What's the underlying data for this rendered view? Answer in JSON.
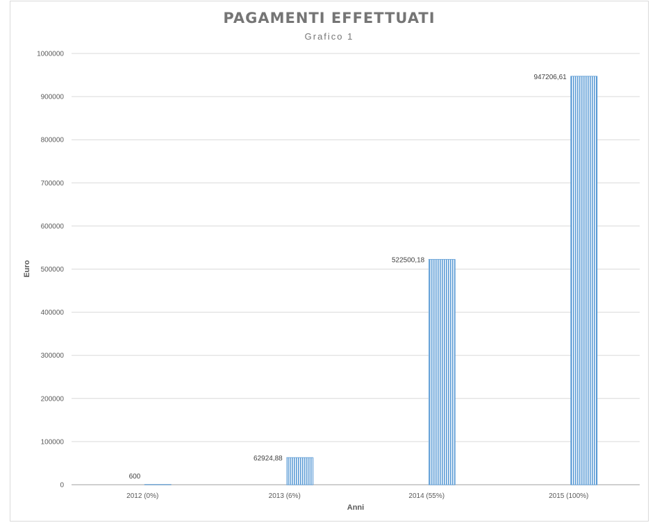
{
  "chart_data": {
    "type": "bar",
    "title": "PAGAMENTI EFFETTUATI",
    "subtitle": "Grafico 1",
    "xlabel": "Anni",
    "ylabel": "Euro",
    "categories": [
      "2012 (0%)",
      "2013 (6%)",
      "2014 (55%)",
      "2015 (100%)"
    ],
    "values": [
      600,
      62924.88,
      522500.18,
      947206.61
    ],
    "data_labels": [
      "600",
      "62924,88",
      "522500,18",
      "947206,61"
    ],
    "ylim": [
      0,
      1000000
    ],
    "yticks": [
      0,
      100000,
      200000,
      300000,
      400000,
      500000,
      600000,
      700000,
      800000,
      900000,
      1000000
    ],
    "ytick_labels": [
      "0",
      "100000",
      "200000",
      "300000",
      "400000",
      "500000",
      "600000",
      "700000",
      "800000",
      "900000",
      "1000000"
    ],
    "grid": true,
    "legend": "none",
    "bar_color": "#5b9bd5",
    "bar_pattern": "vertical-stripes"
  }
}
